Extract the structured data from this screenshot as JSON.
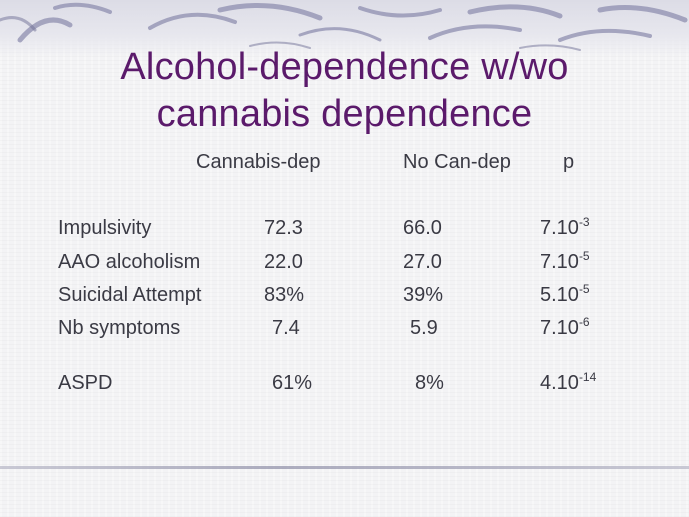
{
  "slide": {
    "title_line1": "Alcohol-dependence w/wo",
    "title_line2": "cannabis dependence"
  },
  "table": {
    "headers": [
      "Cannabis-dep",
      "No Can-dep",
      "p"
    ],
    "rows": [
      {
        "label": "Impulsivity",
        "cannabis": "72.3",
        "no_can": "66.0",
        "p_base": "7.10",
        "p_exp": "-3"
      },
      {
        "label": "AAO alcoholism",
        "cannabis": "22.0",
        "no_can": "27.0",
        "p_base": "7.10",
        "p_exp": "-5"
      },
      {
        "label": "Suicidal Attempt",
        "cannabis": "83%",
        "no_can": "39%",
        "p_base": "5.10",
        "p_exp": "-5"
      },
      {
        "label": "Nb symptoms",
        "cannabis": "7.4",
        "no_can": "5.9",
        "p_base": "7.10",
        "p_exp": "-6"
      },
      {
        "label": "ASPD",
        "cannabis": "61%",
        "no_can": "8%",
        "p_base": "4.10",
        "p_exp": "-14"
      }
    ]
  },
  "colors": {
    "title": "#5b1a6b",
    "body_text": "#3a3a44",
    "background": "#f3f3f5",
    "decoration": "#8f8fb0"
  }
}
